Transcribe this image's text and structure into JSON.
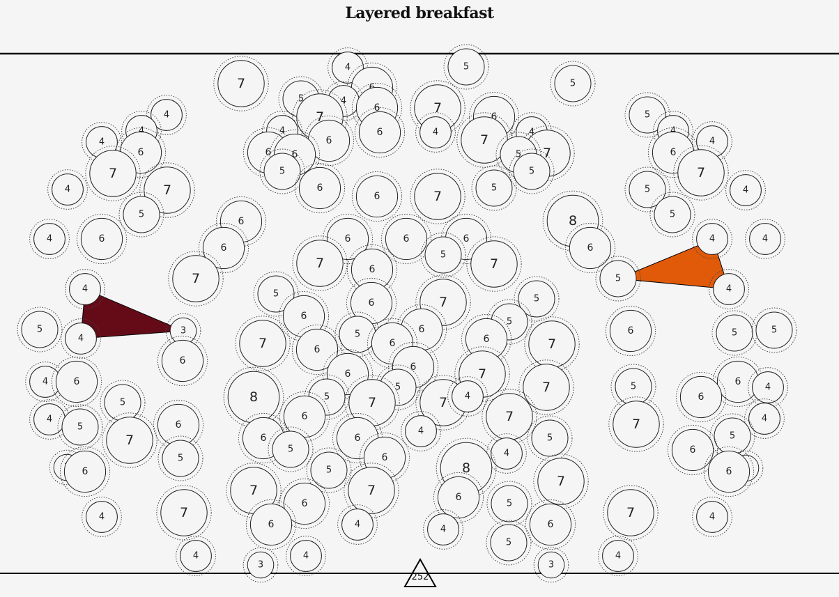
{
  "title": "Layered breakfast",
  "counter_value": "252",
  "colors": {
    "background": "#f6f5f6",
    "left_polygon": "#650b18",
    "right_polygon": "#e05a0a"
  },
  "nodes": [
    [
      499,
      97,
      4
    ],
    [
      669,
      96,
      5
    ],
    [
      346,
      120,
      7
    ],
    [
      822,
      120,
      5
    ],
    [
      534,
      126,
      6
    ],
    [
      432,
      142,
      5
    ],
    [
      493,
      145,
      4
    ],
    [
      541,
      155,
      6
    ],
    [
      628,
      155,
      7
    ],
    [
      459,
      168,
      7
    ],
    [
      709,
      168,
      6
    ],
    [
      239,
      165,
      4
    ],
    [
      929,
      165,
      5
    ],
    [
      203,
      188,
      4
    ],
    [
      966,
      188,
      4
    ],
    [
      405,
      188,
      4
    ],
    [
      545,
      190,
      6
    ],
    [
      625,
      190,
      4
    ],
    [
      763,
      190,
      4
    ],
    [
      146,
      204,
      4
    ],
    [
      472,
      202,
      6
    ],
    [
      695,
      201,
      7
    ],
    [
      1022,
      203,
      4
    ],
    [
      785,
      220,
      7
    ],
    [
      202,
      219,
      6
    ],
    [
      385,
      219,
      6
    ],
    [
      423,
      222,
      6
    ],
    [
      744,
      222,
      5
    ],
    [
      966,
      219,
      6
    ],
    [
      405,
      246,
      5
    ],
    [
      763,
      246,
      5
    ],
    [
      162,
      249,
      7
    ],
    [
      1006,
      248,
      7
    ],
    [
      97,
      272,
      4
    ],
    [
      240,
      273,
      7
    ],
    [
      459,
      270,
      6
    ],
    [
      541,
      282,
      6
    ],
    [
      628,
      282,
      7
    ],
    [
      709,
      270,
      5
    ],
    [
      929,
      272,
      5
    ],
    [
      1070,
      273,
      4
    ],
    [
      203,
      308,
      5
    ],
    [
      965,
      308,
      5
    ],
    [
      346,
      318,
      6
    ],
    [
      822,
      317,
      8
    ],
    [
      71,
      343,
      4
    ],
    [
      146,
      343,
      6
    ],
    [
      499,
      343,
      6
    ],
    [
      583,
      343,
      6
    ],
    [
      669,
      343,
      6
    ],
    [
      1022,
      343,
      4
    ],
    [
      1098,
      343,
      4
    ],
    [
      321,
      356,
      6
    ],
    [
      847,
      356,
      6
    ],
    [
      636,
      366,
      5
    ],
    [
      459,
      378,
      7
    ],
    [
      534,
      387,
      6
    ],
    [
      709,
      379,
      7
    ],
    [
      281,
      400,
      7
    ],
    [
      887,
      400,
      5
    ],
    [
      122,
      415,
      4
    ],
    [
      396,
      422,
      5
    ],
    [
      1046,
      415,
      4
    ],
    [
      533,
      435,
      6
    ],
    [
      636,
      434,
      7
    ],
    [
      770,
      429,
      5
    ],
    [
      436,
      454,
      6
    ],
    [
      57,
      473,
      5
    ],
    [
      263,
      475,
      3
    ],
    [
      605,
      473,
      6
    ],
    [
      731,
      462,
      5
    ],
    [
      905,
      475,
      6
    ],
    [
      1054,
      478,
      5
    ],
    [
      1111,
      474,
      5
    ],
    [
      116,
      486,
      4
    ],
    [
      513,
      480,
      5
    ],
    [
      377,
      493,
      7
    ],
    [
      563,
      493,
      6
    ],
    [
      698,
      487,
      6
    ],
    [
      792,
      494,
      7
    ],
    [
      455,
      502,
      6
    ],
    [
      262,
      518,
      6
    ],
    [
      593,
      527,
      6
    ],
    [
      499,
      537,
      6
    ],
    [
      692,
      537,
      7
    ],
    [
      65,
      548,
      4
    ],
    [
      110,
      548,
      6
    ],
    [
      571,
      556,
      5
    ],
    [
      784,
      556,
      7
    ],
    [
      909,
      555,
      5
    ],
    [
      1059,
      548,
      6
    ],
    [
      1102,
      556,
      4
    ],
    [
      176,
      578,
      5
    ],
    [
      364,
      570,
      8
    ],
    [
      469,
      570,
      5
    ],
    [
      534,
      578,
      7
    ],
    [
      636,
      578,
      7
    ],
    [
      671,
      569,
      4
    ],
    [
      1006,
      570,
      6
    ],
    [
      71,
      602,
      4
    ],
    [
      731,
      598,
      7
    ],
    [
      1097,
      601,
      4
    ],
    [
      115,
      613,
      5
    ],
    [
      256,
      610,
      6
    ],
    [
      437,
      598,
      6
    ],
    [
      913,
      609,
      7
    ],
    [
      186,
      632,
      7
    ],
    [
      604,
      619,
      4
    ],
    [
      378,
      629,
      6
    ],
    [
      513,
      629,
      6
    ],
    [
      789,
      629,
      5
    ],
    [
      1051,
      626,
      5
    ],
    [
      417,
      645,
      5
    ],
    [
      259,
      658,
      5
    ],
    [
      552,
      657,
      6
    ],
    [
      727,
      651,
      4
    ],
    [
      994,
      646,
      6
    ],
    [
      96,
      671,
      3
    ],
    [
      122,
      677,
      6
    ],
    [
      472,
      675,
      5
    ],
    [
      669,
      672,
      8
    ],
    [
      1070,
      672,
      3
    ],
    [
      1046,
      677,
      6
    ],
    [
      805,
      691,
      7
    ],
    [
      364,
      704,
      7
    ],
    [
      533,
      704,
      7
    ],
    [
      658,
      714,
      6
    ],
    [
      437,
      723,
      6
    ],
    [
      731,
      723,
      5
    ],
    [
      146,
      742,
      4
    ],
    [
      264,
      736,
      7
    ],
    [
      905,
      736,
      7
    ],
    [
      1022,
      742,
      4
    ],
    [
      389,
      753,
      6
    ],
    [
      513,
      753,
      4
    ],
    [
      636,
      760,
      4
    ],
    [
      790,
      753,
      6
    ],
    [
      730,
      779,
      5
    ],
    [
      281,
      798,
      4
    ],
    [
      439,
      798,
      4
    ],
    [
      887,
      798,
      4
    ],
    [
      374,
      811,
      3
    ],
    [
      791,
      811,
      3
    ]
  ]
}
